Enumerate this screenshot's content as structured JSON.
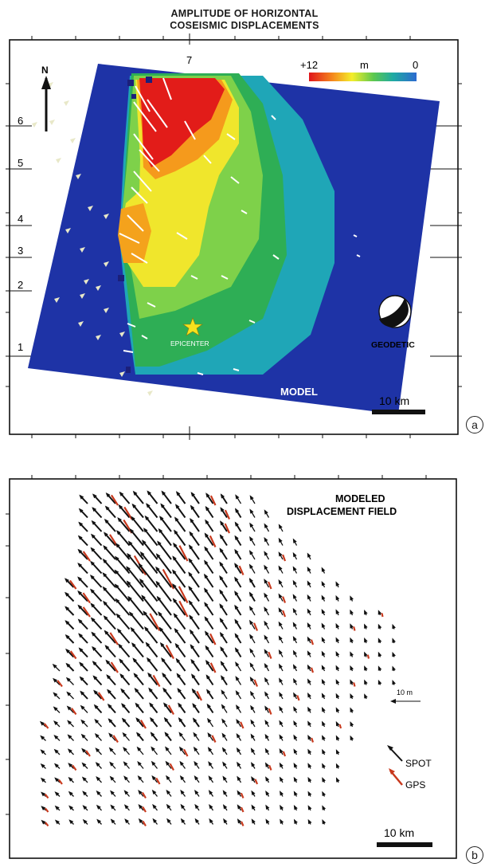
{
  "panel_a": {
    "title_line1": "AMPLITUDE OF HORIZONTAL",
    "title_line2": "COSEISMIC DISPLACEMENTS",
    "north_label": "N",
    "top_tick_label": "7",
    "left_tick_labels": [
      "6",
      "5",
      "4",
      "3",
      "2",
      "1"
    ],
    "colorbar": {
      "max_label": "+12",
      "unit_label": "m",
      "min_label": "0",
      "colors": [
        "#e0141b",
        "#f59a1c",
        "#f4ee2a",
        "#7ed14a",
        "#2fae58",
        "#1eaaa4",
        "#2b62c4",
        "#1b2fa0"
      ]
    },
    "epicenter_label": "EPICENTER",
    "mechanism_label": "GEODETIC",
    "model_label": "MODEL",
    "scale_label": "10 km",
    "panel_label": "a"
  },
  "panel_b": {
    "title_line1": "MODELED",
    "title_line2": "DISPLACEMENT FIELD",
    "ref_vector_label": "10 m",
    "legend": [
      {
        "label": "SPOT",
        "color": "#111111"
      },
      {
        "label": "GPS",
        "color": "#c8391d"
      }
    ],
    "scale_label": "10 km",
    "panel_label": "b"
  }
}
